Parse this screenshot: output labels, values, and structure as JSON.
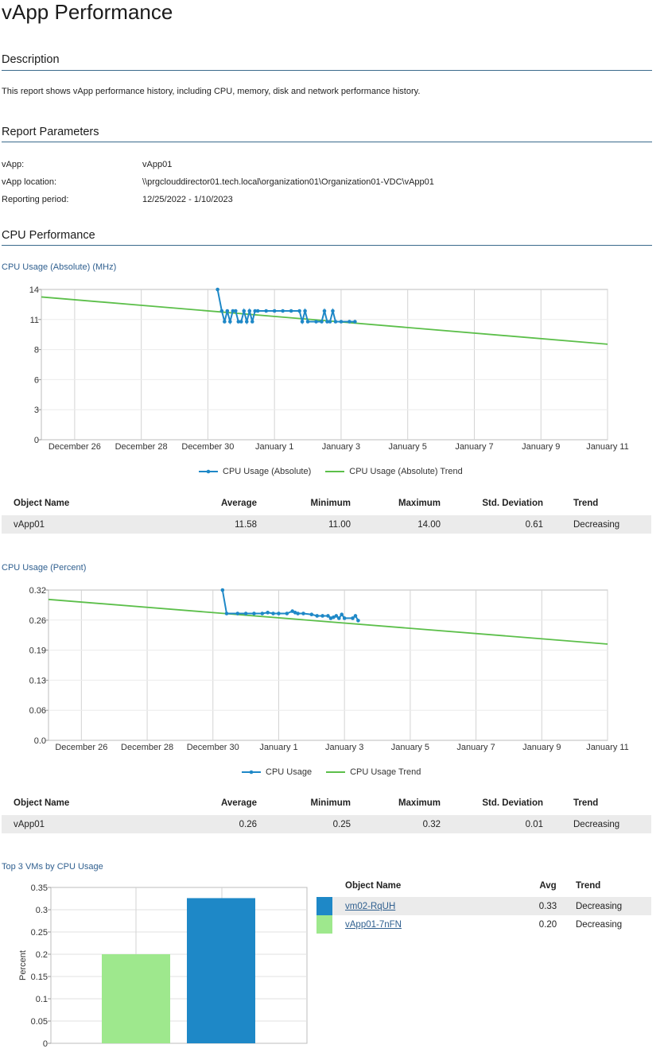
{
  "page": {
    "title": "vApp Performance"
  },
  "description": {
    "heading": "Description",
    "text": "This report shows vApp performance history, including CPU, memory, disk and network performance history."
  },
  "parameters": {
    "heading": "Report Parameters",
    "rows": [
      {
        "label": "vApp:",
        "value": "vApp01"
      },
      {
        "label": "vApp location:",
        "value": "\\\\prgclouddirector01.tech.local\\organization01\\Organization01-VDC\\vApp01"
      },
      {
        "label": "Reporting period:",
        "value": "12/25/2022 - 1/10/2023"
      }
    ]
  },
  "cpu_section": {
    "heading": "CPU Performance"
  },
  "colors": {
    "series": "#1e88c7",
    "trend": "#5cbf4a",
    "bar_green": "#9ee88d",
    "bar_blue": "#1e88c7",
    "rule": "#3a6a8c",
    "title_blue": "#2f5f8f"
  },
  "stats_headers": {
    "name": "Object Name",
    "avg": "Average",
    "min": "Minimum",
    "max": "Maximum",
    "std": "Std. Deviation",
    "trend": "Trend"
  },
  "abs_stats": {
    "name": "vApp01",
    "avg": "11.58",
    "min": "11.00",
    "max": "14.00",
    "std": "0.61",
    "trend": "Decreasing"
  },
  "pct_stats": {
    "name": "vApp01",
    "avg": "0.26",
    "min": "0.25",
    "max": "0.32",
    "std": "0.01",
    "trend": "Decreasing"
  },
  "top3": {
    "title": "Top 3 VMs by CPU Usage",
    "headers": {
      "name": "Object Name",
      "avg": "Avg",
      "trend": "Trend"
    },
    "rows": [
      {
        "name": "vm02-RqUH",
        "avg": "0.33",
        "trend": "Decreasing",
        "color": "#1e88c7"
      },
      {
        "name": "vApp01-7nFN",
        "avg": "0.20",
        "trend": "Decreasing",
        "color": "#9ee88d"
      }
    ]
  },
  "chart_data": [
    {
      "type": "line",
      "title": "CPU Usage (Absolute) (MHz)",
      "x_tick_labels": [
        "December 26",
        "December 28",
        "December 30",
        "January 1",
        "January 3",
        "January 5",
        "January 7",
        "January 9",
        "January 11"
      ],
      "x_range": [
        "2022-12-25",
        "2023-01-11"
      ],
      "y_tick_labels": [
        "0",
        "3",
        "6",
        "8",
        "11",
        "14"
      ],
      "ylim": [
        0,
        14
      ],
      "grid": true,
      "legend_position": "bottom-center",
      "series": [
        {
          "name": "CPU Usage (Absolute)",
          "points": [
            [
              "2022-12-30 07:00",
              14
            ],
            [
              "2022-12-30 10:00",
              12
            ],
            [
              "2022-12-30 12:00",
              11
            ],
            [
              "2022-12-30 14:00",
              12
            ],
            [
              "2022-12-30 16:00",
              11
            ],
            [
              "2022-12-30 18:00",
              12
            ],
            [
              "2022-12-30 20:00",
              12
            ],
            [
              "2022-12-30 22:00",
              11
            ],
            [
              "2022-12-31 00:00",
              11
            ],
            [
              "2022-12-31 02:00",
              12
            ],
            [
              "2022-12-31 04:00",
              11
            ],
            [
              "2022-12-31 06:00",
              12
            ],
            [
              "2022-12-31 08:00",
              11
            ],
            [
              "2022-12-31 10:00",
              12
            ],
            [
              "2022-12-31 12:00",
              12
            ],
            [
              "2022-12-31 18:00",
              12
            ],
            [
              "2023-01-01 00:00",
              12
            ],
            [
              "2023-01-01 06:00",
              12
            ],
            [
              "2023-01-01 12:00",
              12
            ],
            [
              "2023-01-01 18:00",
              12
            ],
            [
              "2023-01-01 20:00",
              11
            ],
            [
              "2023-01-01 22:00",
              12
            ],
            [
              "2023-01-02 00:00",
              11
            ],
            [
              "2023-01-02 06:00",
              11
            ],
            [
              "2023-01-02 10:00",
              11
            ],
            [
              "2023-01-02 12:00",
              12
            ],
            [
              "2023-01-02 14:00",
              11
            ],
            [
              "2023-01-02 16:00",
              11
            ],
            [
              "2023-01-02 18:00",
              12
            ],
            [
              "2023-01-02 20:00",
              11
            ],
            [
              "2023-01-03 00:00",
              11
            ],
            [
              "2023-01-03 06:00",
              11
            ],
            [
              "2023-01-03 10:00",
              11
            ]
          ]
        },
        {
          "name": "CPU Usage (Absolute) Trend",
          "points": [
            [
              "2022-12-25",
              13.3
            ],
            [
              "2023-01-11",
              8.9
            ]
          ]
        }
      ]
    },
    {
      "type": "line",
      "title": "CPU Usage (Percent)",
      "x_tick_labels": [
        "December 26",
        "December 28",
        "December 30",
        "January 1",
        "January 3",
        "January 5",
        "January 7",
        "January 9",
        "January 11"
      ],
      "x_range": [
        "2022-12-25",
        "2023-01-11"
      ],
      "y_tick_labels": [
        "0.0",
        "0.06",
        "0.13",
        "0.19",
        "0.26",
        "0.32"
      ],
      "ylim": [
        0,
        0.32
      ],
      "grid": true,
      "legend_position": "bottom-center",
      "series": [
        {
          "name": "CPU Usage",
          "points": [
            [
              "2022-12-30 07:00",
              0.32
            ],
            [
              "2022-12-30 10:00",
              0.27
            ],
            [
              "2022-12-30 18:00",
              0.27
            ],
            [
              "2022-12-31 00:00",
              0.27
            ],
            [
              "2022-12-31 06:00",
              0.27
            ],
            [
              "2022-12-31 12:00",
              0.27
            ],
            [
              "2022-12-31 16:00",
              0.272
            ],
            [
              "2022-12-31 20:00",
              0.27
            ],
            [
              "2023-01-01 00:00",
              0.27
            ],
            [
              "2023-01-01 06:00",
              0.27
            ],
            [
              "2023-01-01 10:00",
              0.275
            ],
            [
              "2023-01-01 12:00",
              0.272
            ],
            [
              "2023-01-01 14:00",
              0.27
            ],
            [
              "2023-01-01 18:00",
              0.27
            ],
            [
              "2023-01-02 00:00",
              0.268
            ],
            [
              "2023-01-02 04:00",
              0.265
            ],
            [
              "2023-01-02 08:00",
              0.265
            ],
            [
              "2023-01-02 12:00",
              0.265
            ],
            [
              "2023-01-02 14:00",
              0.26
            ],
            [
              "2023-01-02 16:00",
              0.262
            ],
            [
              "2023-01-02 18:00",
              0.265
            ],
            [
              "2023-01-02 20:00",
              0.26
            ],
            [
              "2023-01-02 22:00",
              0.268
            ],
            [
              "2023-01-03 00:00",
              0.26
            ],
            [
              "2023-01-03 06:00",
              0.26
            ],
            [
              "2023-01-03 08:00",
              0.265
            ],
            [
              "2023-01-03 10:00",
              0.255
            ]
          ]
        },
        {
          "name": "CPU Usage Trend",
          "points": [
            [
              "2022-12-25",
              0.3
            ],
            [
              "2023-01-11",
              0.205
            ]
          ]
        }
      ]
    },
    {
      "type": "bar",
      "title": "Top 3 VMs by CPU Usage",
      "categories": [
        "vApp01-7nFN",
        "vm02-RqUH"
      ],
      "values": [
        0.2,
        0.326
      ],
      "ylabel": "Percent",
      "y_tick_labels": [
        "0",
        "0.05",
        "0.1",
        "0.15",
        "0.2",
        "0.25",
        "0.3",
        "0.35"
      ],
      "ylim": [
        0,
        0.35
      ],
      "grid": true
    }
  ]
}
